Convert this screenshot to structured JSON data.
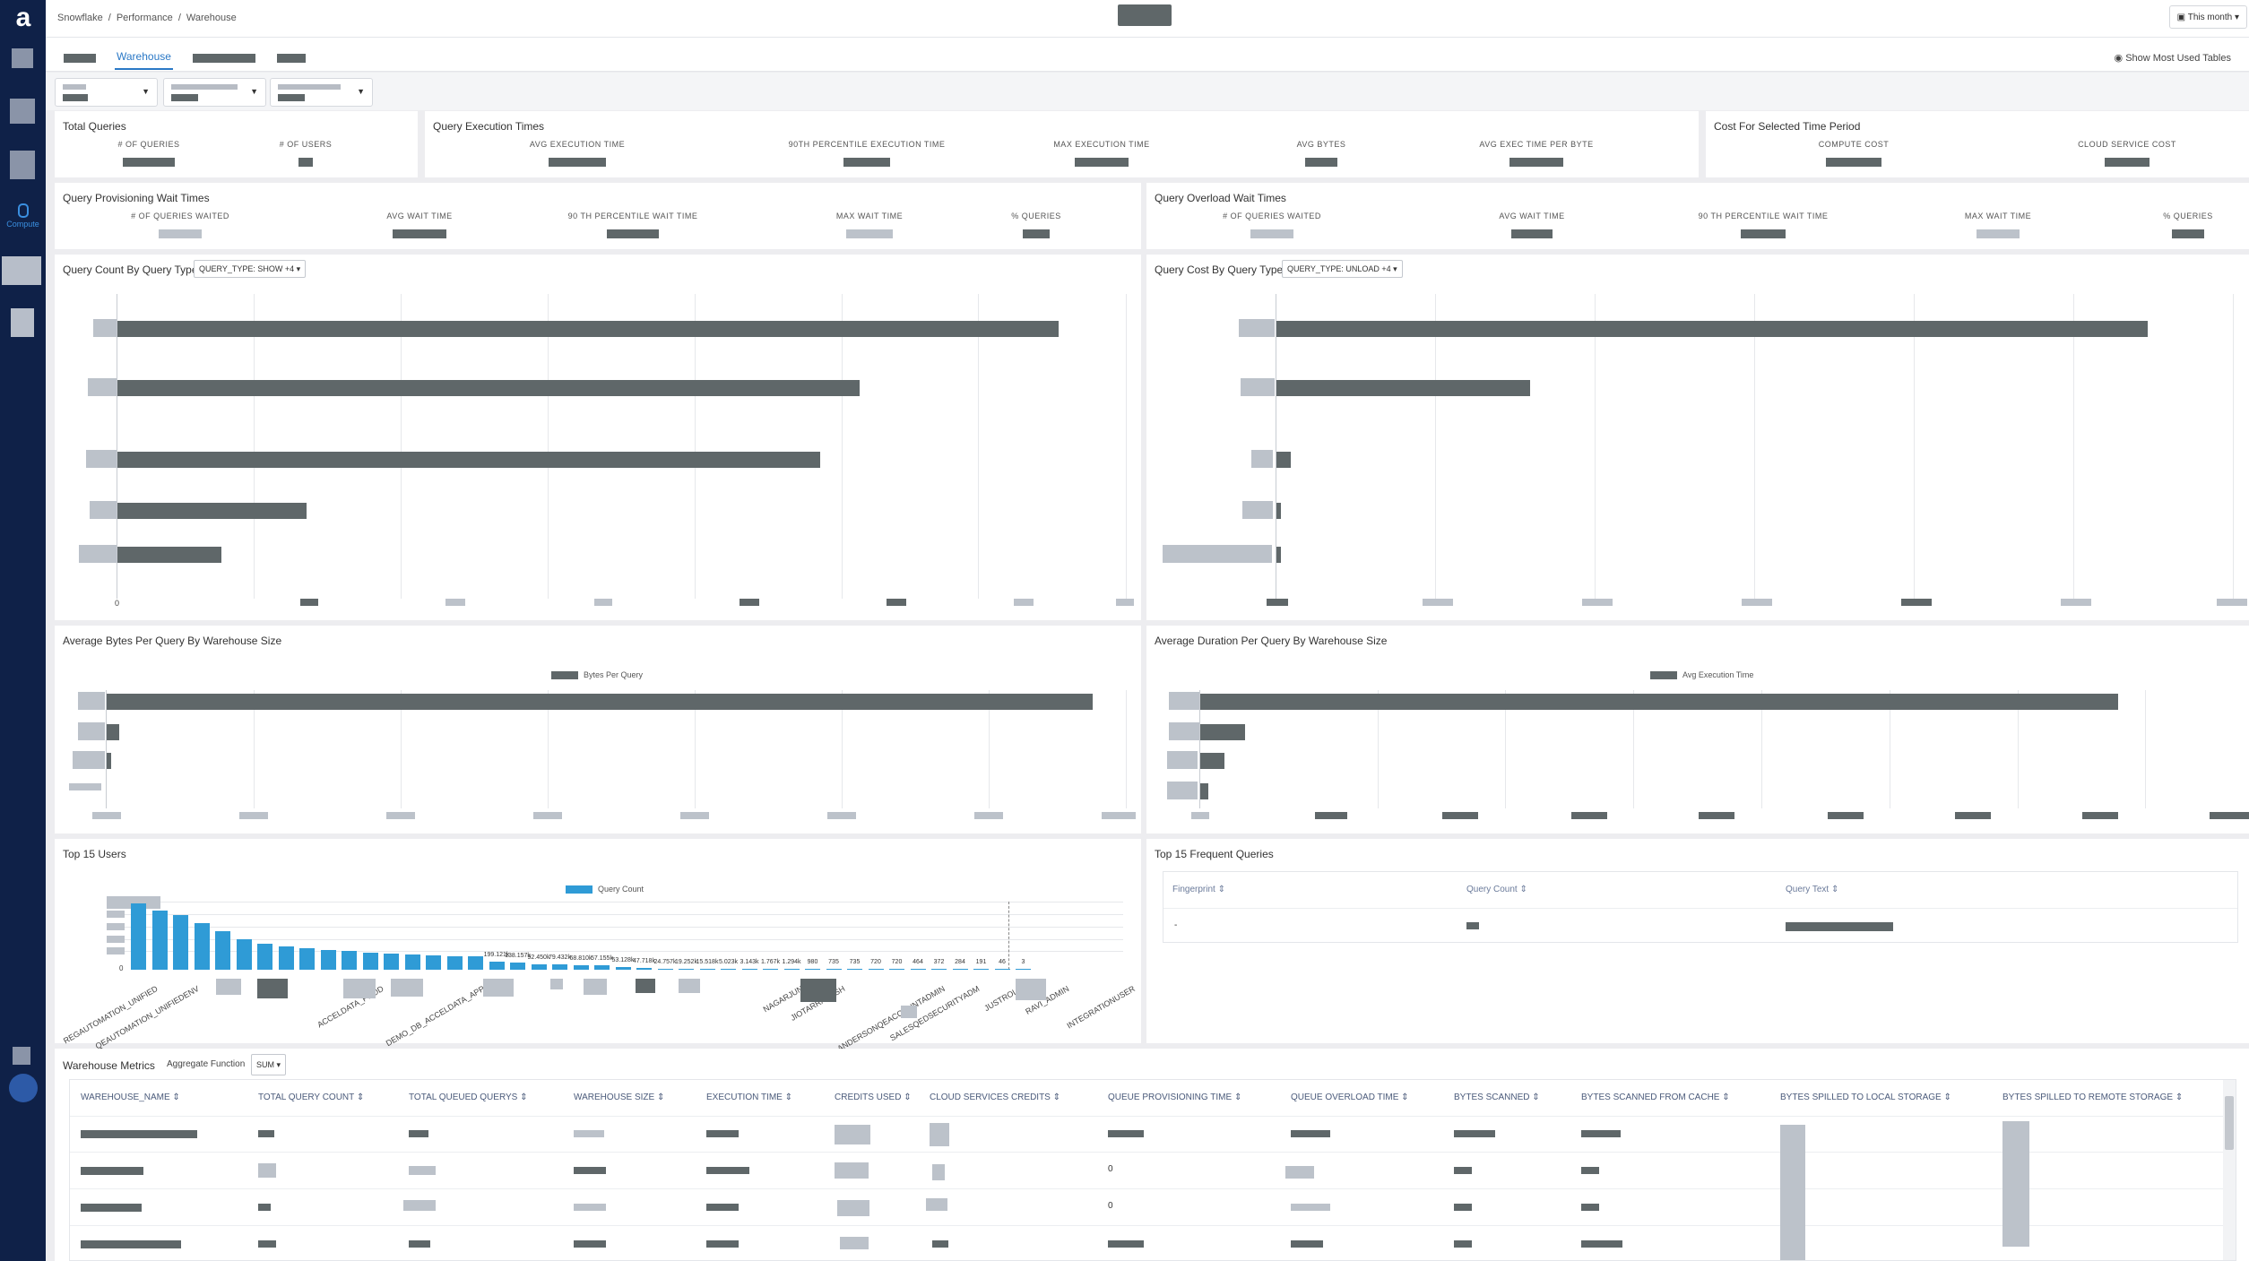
{
  "breadcrumb": [
    "Snowflake",
    "/",
    "Performance",
    "/",
    "Warehouse"
  ],
  "date_range": "This month",
  "tabs": {
    "active": "Warehouse"
  },
  "show_most_used": "Show Most Used Tables",
  "total_queries": {
    "title": "Total Queries",
    "labels": [
      "# OF QUERIES",
      "# OF USERS"
    ]
  },
  "exec_times": {
    "title": "Query Execution Times",
    "labels": [
      "AVG EXECUTION TIME",
      "90TH PERCENTILE EXECUTION TIME",
      "MAX EXECUTION TIME",
      "AVG BYTES",
      "AVG EXEC TIME PER BYTE"
    ]
  },
  "cost": {
    "title": "Cost For Selected Time Period",
    "labels": [
      "COMPUTE COST",
      "CLOUD SERVICE COST"
    ]
  },
  "prov_wait": {
    "title": "Query Provisioning Wait Times",
    "labels": [
      "# OF QUERIES WAITED",
      "AVG WAIT TIME",
      "90 TH PERCENTILE WAIT TIME",
      "MAX WAIT TIME",
      "% QUERIES"
    ]
  },
  "over_wait": {
    "title": "Query Overload Wait Times",
    "labels": [
      "# OF QUERIES WAITED",
      "AVG WAIT TIME",
      "90 TH PERCENTILE WAIT TIME",
      "MAX WAIT TIME",
      "% QUERIES"
    ]
  },
  "count_by_type": {
    "title": "Query Count By Query Type",
    "dropdown": "QUERY_TYPE: SHOW +4",
    "axis_zero": "0"
  },
  "cost_by_type": {
    "title": "Query Cost By Query Type",
    "dropdown": "QUERY_TYPE: UNLOAD +4"
  },
  "avg_bytes": {
    "title": "Average Bytes Per Query By Warehouse Size",
    "legend": "Bytes Per Query"
  },
  "avg_duration": {
    "title": "Average Duration Per Query By Warehouse Size",
    "legend": "Avg Execution Time"
  },
  "top_users": {
    "title": "Top 15 Users",
    "legend": "Query Count",
    "axis_zero": "0",
    "bar_color": "#2f9bd6"
  },
  "top_queries": {
    "title": "Top 15 Frequent Queries",
    "columns": [
      "Fingerprint",
      "Query Count",
      "Query Text"
    ],
    "row_fingerprint": "-"
  },
  "warehouse_metrics": {
    "title": "Warehouse Metrics",
    "agg_label": "Aggregate Function",
    "agg_value": "SUM",
    "columns": [
      "WAREHOUSE_NAME",
      "TOTAL QUERY COUNT",
      "TOTAL QUEUED QUERYS",
      "WAREHOUSE SIZE",
      "EXECUTION TIME",
      "CREDITS USED",
      "CLOUD SERVICES CREDITS",
      "QUEUE PROVISIONING TIME",
      "QUEUE OVERLOAD TIME",
      "BYTES SCANNED",
      "BYTES SCANNED FROM CACHE",
      "BYTES SPILLED TO LOCAL STORAGE",
      "BYTES SPILLED TO REMOTE STORAGE"
    ],
    "zero": "0"
  },
  "chart_data": [
    {
      "type": "bar",
      "title": "Top 15 Users",
      "series": [
        {
          "name": "Query Count",
          "values": [
            240000,
            214000,
            199121,
            170000,
            138157,
            110000,
            92450,
            85000,
            79432,
            72000,
            68810,
            62000,
            57155,
            55000,
            53128,
            50000,
            47718,
            30000,
            24757,
            21000,
            19252,
            17000,
            15518,
            9000,
            5023,
            4000,
            3143,
            2500,
            1767,
            1500,
            1294,
            1000,
            980,
            735,
            735,
            720,
            720,
            464,
            372,
            284,
            191,
            46,
            3
          ]
        }
      ],
      "data_labels": [
        "199.121k",
        "138.157k",
        "92.450k",
        "79.432k",
        "68.810k",
        "57.155k",
        "53.128k",
        "47.718k",
        "24.757k",
        "19.252k",
        "15.518k",
        "5.023k",
        "3.143k",
        "1.767k",
        "1.294k",
        "980",
        "735",
        "735",
        "720",
        "720",
        "464",
        "372",
        "284",
        "191",
        "46",
        "3"
      ],
      "categories_visible": [
        "REGAUTOMATION_UNIFIED",
        "QEAUTOMATION_UNIFIEDENV",
        "ACCELDATA_PROD",
        "DEMO_DB_ACCELDATA_APP",
        "NAGARJUN",
        "JIOTARRAKASH",
        "ANDERSONQEACCOUNTADMIN",
        "SALESQEDSECURITYADM",
        "JUSTROLE",
        "RAVI_ADMIN",
        "INTEGRATIONUSER"
      ]
    }
  ]
}
